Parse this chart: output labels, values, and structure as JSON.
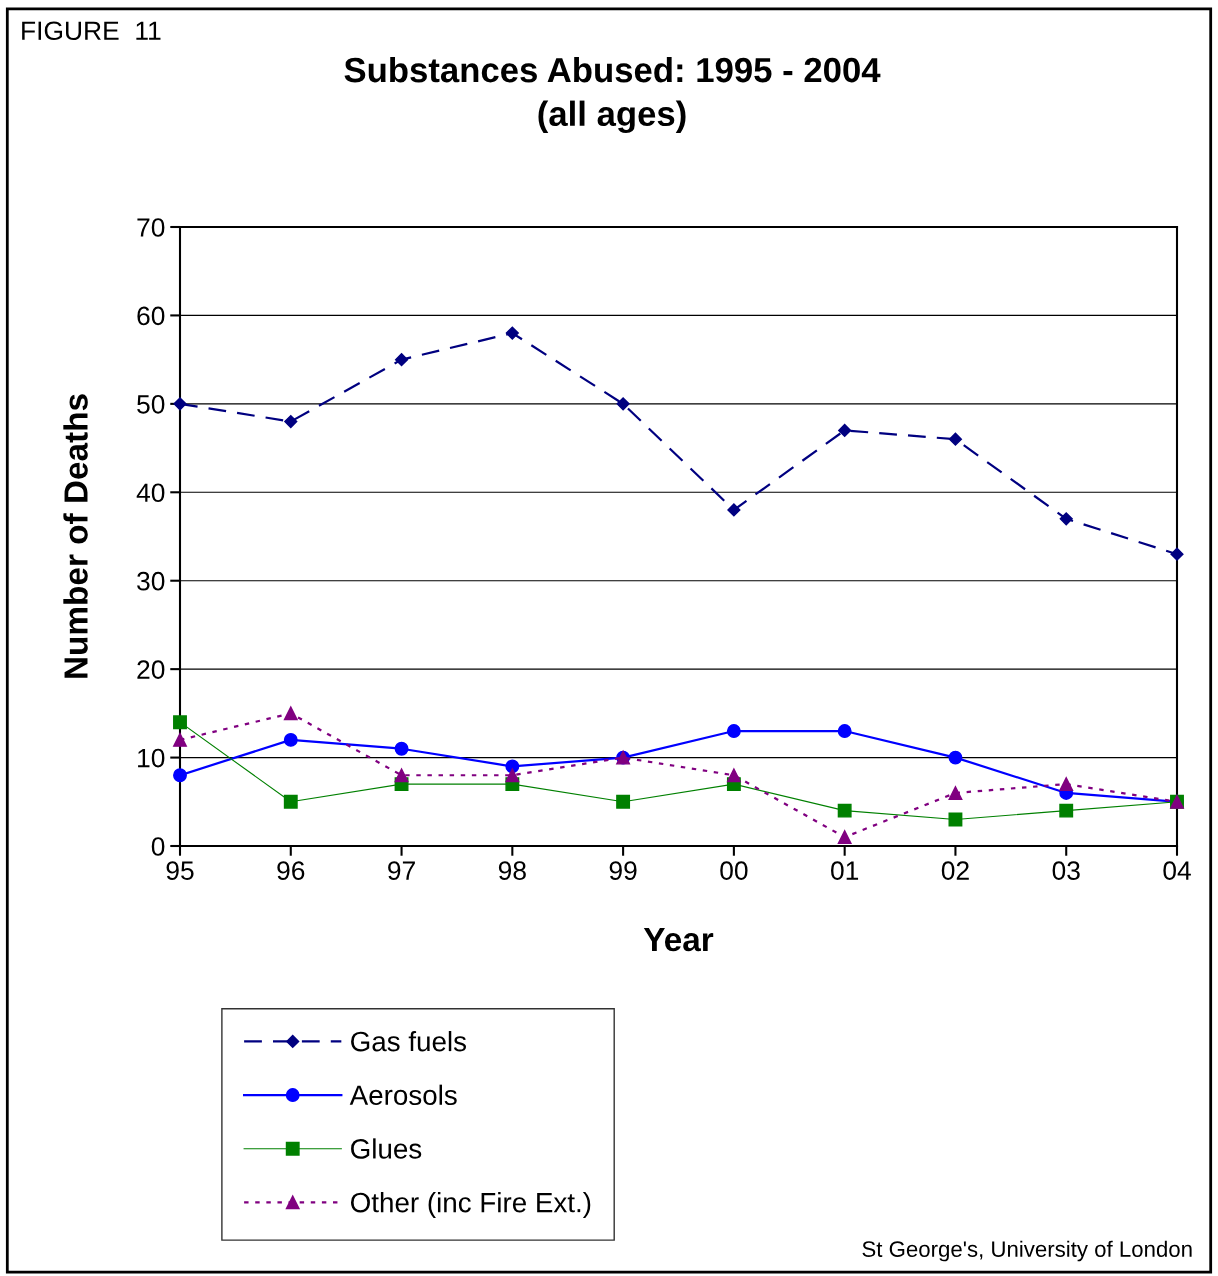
{
  "chart_data": {
    "type": "line",
    "title": "Substances Abused: 1995 - 2004\n(all ages)",
    "xlabel": "Year",
    "ylabel": "Number of Deaths",
    "annotations": [
      "FIGURE  11",
      "St George's, University of London"
    ],
    "categories": [
      "95",
      "96",
      "97",
      "98",
      "99",
      "00",
      "01",
      "02",
      "03",
      "04"
    ],
    "series": [
      {
        "name": "Gas fuels",
        "color": "#000080",
        "marker": "diamond",
        "line_style": "dashed",
        "values": [
          50,
          48,
          55,
          58,
          50,
          38,
          47,
          46,
          37,
          33
        ]
      },
      {
        "name": "Aerosols",
        "color": "#0000ff",
        "marker": "circle",
        "line_style": "solid",
        "values": [
          8,
          12,
          11,
          9,
          10,
          13,
          13,
          10,
          6,
          5
        ]
      },
      {
        "name": "Glues",
        "color": "#008000",
        "marker": "square",
        "line_style": "solid",
        "values": [
          14,
          5,
          7,
          7,
          5,
          7,
          4,
          3,
          4,
          5
        ]
      },
      {
        "name": "Other (inc Fire Ext.)",
        "color": "#800080",
        "marker": "triangle",
        "line_style": "dotted",
        "values": [
          12,
          15,
          8,
          8,
          10,
          8,
          1,
          6,
          7,
          5
        ]
      }
    ],
    "ylim": [
      0,
      70
    ],
    "yticks": [
      0,
      10,
      20,
      30,
      40,
      50,
      60,
      70
    ],
    "grid": "y",
    "legend": "bottom"
  }
}
